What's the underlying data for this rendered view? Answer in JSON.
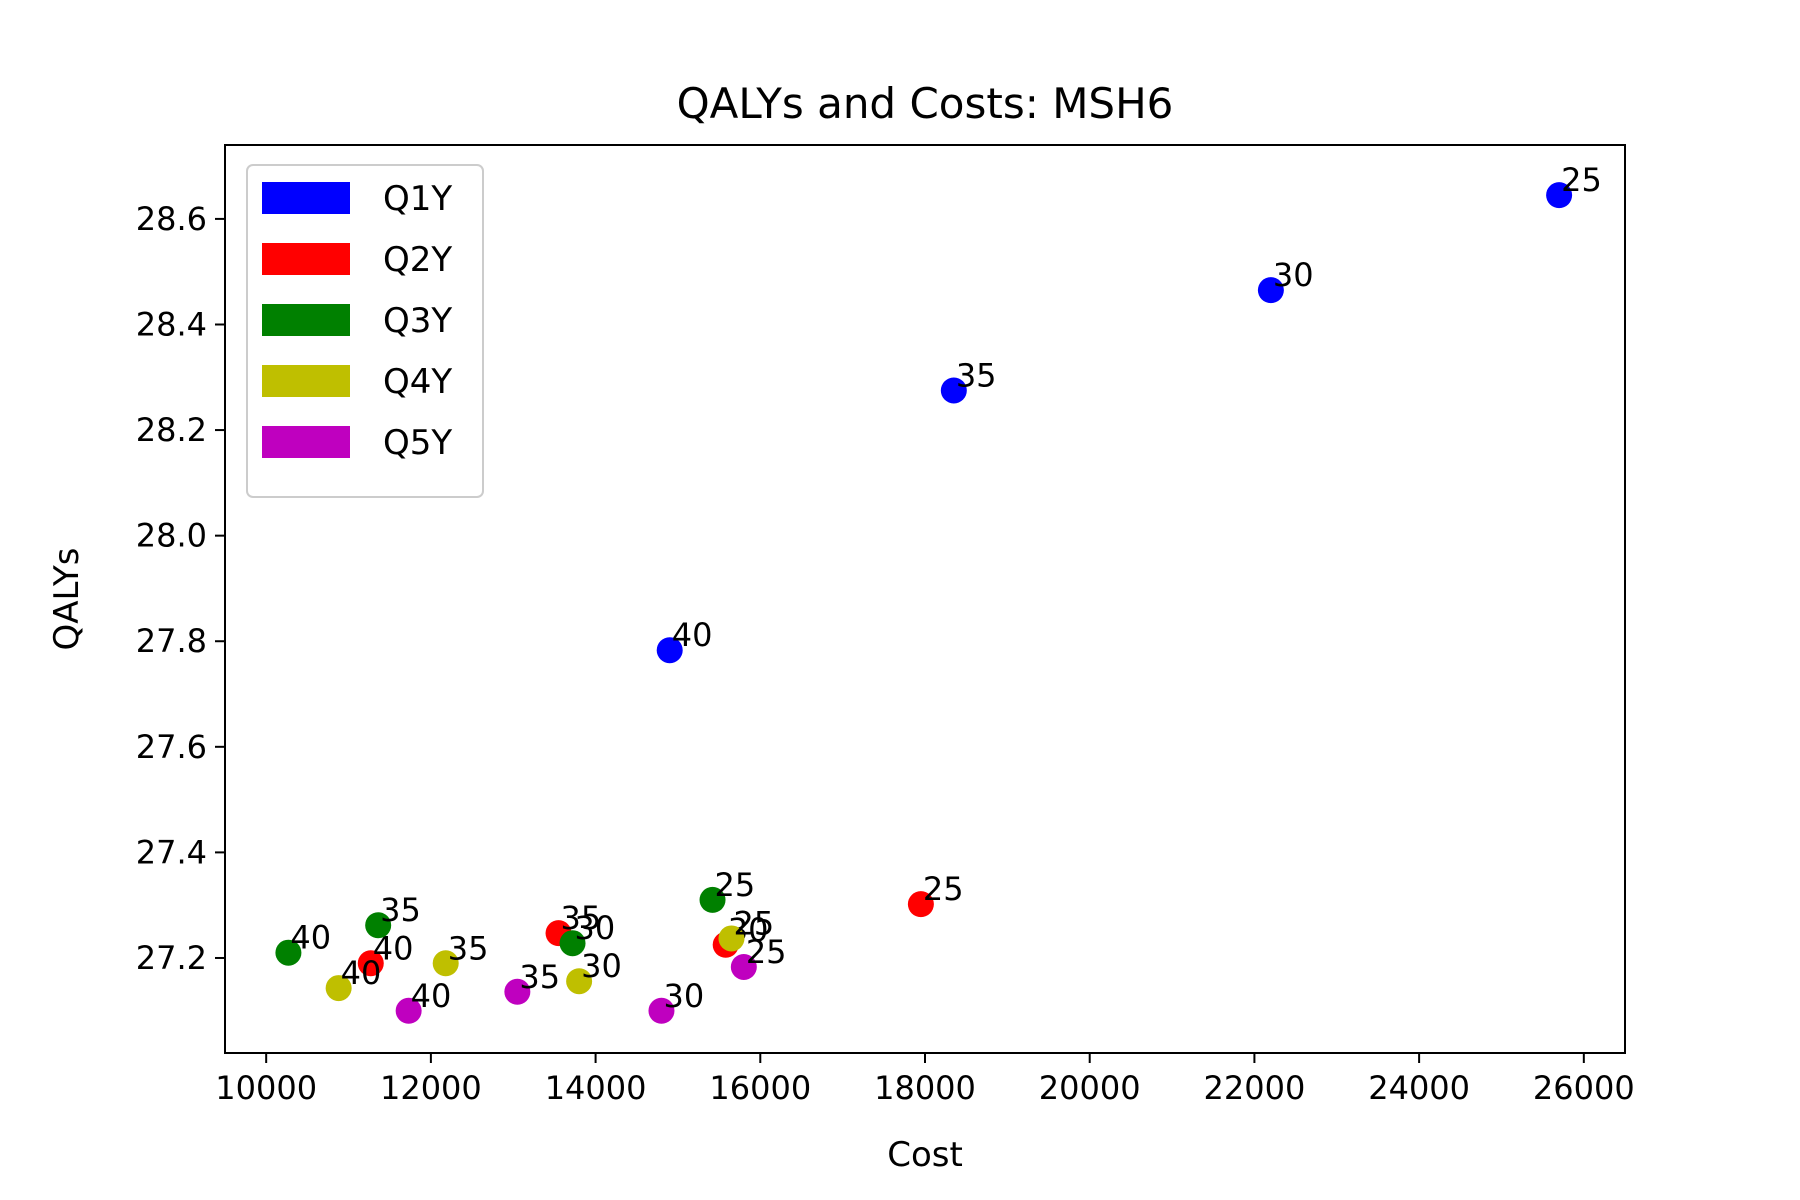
{
  "chart_data": {
    "type": "scatter",
    "title": "QALYs and Costs: MSH6",
    "xlabel": "Cost",
    "ylabel": "QALYs",
    "xlim": [
      9500,
      26500
    ],
    "ylim": [
      27.02,
      28.74
    ],
    "xticks": [
      10000,
      12000,
      14000,
      16000,
      18000,
      20000,
      22000,
      24000,
      26000
    ],
    "yticks": [
      27.2,
      27.4,
      27.6,
      27.8,
      28.0,
      28.2,
      28.4,
      28.6
    ],
    "xtick_labels": [
      "10000",
      "12000",
      "14000",
      "16000",
      "18000",
      "20000",
      "22000",
      "24000",
      "26000"
    ],
    "ytick_labels": [
      "27.2",
      "27.4",
      "27.6",
      "27.8",
      "28.0",
      "28.2",
      "28.4",
      "28.6"
    ],
    "grid": false,
    "legend_position": "top-left",
    "series": [
      {
        "name": "Q1Y",
        "color": "#0000ff",
        "points": [
          {
            "x": 25700,
            "y": 28.645,
            "label": "25"
          },
          {
            "x": 22200,
            "y": 28.465,
            "label": "30"
          },
          {
            "x": 18350,
            "y": 28.275,
            "label": "35"
          },
          {
            "x": 14900,
            "y": 27.783,
            "label": "40"
          }
        ]
      },
      {
        "name": "Q2Y",
        "color": "#ff0000",
        "points": [
          {
            "x": 17950,
            "y": 27.302,
            "label": "25"
          },
          {
            "x": 15580,
            "y": 27.225,
            "label": "30"
          },
          {
            "x": 13550,
            "y": 27.247,
            "label": "35"
          },
          {
            "x": 11270,
            "y": 27.19,
            "label": "40"
          }
        ]
      },
      {
        "name": "Q3Y",
        "color": "#008000",
        "points": [
          {
            "x": 15420,
            "y": 27.31,
            "label": "25"
          },
          {
            "x": 13720,
            "y": 27.228,
            "label": "30"
          },
          {
            "x": 11360,
            "y": 27.262,
            "label": "35"
          },
          {
            "x": 10270,
            "y": 27.21,
            "label": "40"
          }
        ]
      },
      {
        "name": "Q4Y",
        "color": "#bfbf00",
        "points": [
          {
            "x": 15650,
            "y": 27.237,
            "label": "25"
          },
          {
            "x": 13800,
            "y": 27.156,
            "label": "30"
          },
          {
            "x": 12180,
            "y": 27.19,
            "label": "35"
          },
          {
            "x": 10880,
            "y": 27.143,
            "label": "40"
          }
        ]
      },
      {
        "name": "Q5Y",
        "color": "#bf00bf",
        "points": [
          {
            "x": 15800,
            "y": 27.183,
            "label": "25"
          },
          {
            "x": 14800,
            "y": 27.1,
            "label": "30"
          },
          {
            "x": 13050,
            "y": 27.136,
            "label": "35"
          },
          {
            "x": 11730,
            "y": 27.1,
            "label": "40"
          }
        ]
      }
    ]
  }
}
